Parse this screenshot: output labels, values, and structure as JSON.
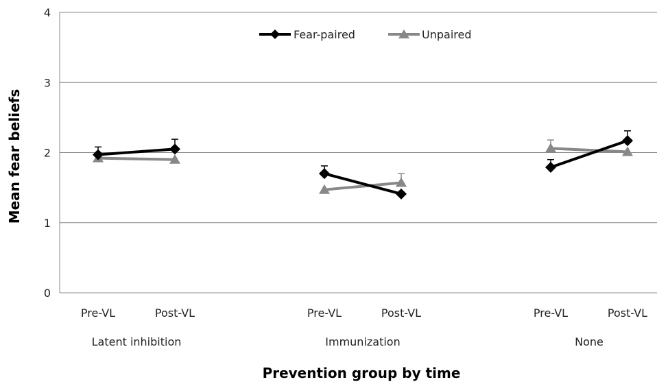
{
  "chart_data": {
    "type": "line",
    "xlabel": "Prevention group by time",
    "ylabel": "Mean fear beliefs",
    "ylim": [
      0,
      4
    ],
    "yticks": [
      "0",
      "1",
      "2",
      "3",
      "4"
    ],
    "grid": true,
    "legend": "top-center",
    "groups": [
      {
        "name": "Latent inhibition",
        "times": [
          "Pre-VL",
          "Post-VL"
        ]
      },
      {
        "name": "Immunization",
        "times": [
          "Pre-VL",
          "Post-VL"
        ]
      },
      {
        "name": "None",
        "times": [
          "Pre-VL",
          "Post-VL"
        ]
      }
    ],
    "series": [
      {
        "name": "Fear-paired",
        "color": "#000000",
        "marker": "diamond",
        "values": [
          [
            1.97,
            2.05
          ],
          [
            1.7,
            1.41
          ],
          [
            1.79,
            2.17
          ]
        ],
        "errors": [
          [
            0.11,
            0.14
          ],
          [
            0.11,
            0.0
          ],
          [
            0.11,
            0.14
          ]
        ]
      },
      {
        "name": "Unpaired",
        "color": "#888888",
        "marker": "triangle",
        "values": [
          [
            1.92,
            1.9
          ],
          [
            1.47,
            1.57
          ],
          [
            2.06,
            2.01
          ]
        ],
        "errors": [
          [
            0.0,
            0.0
          ],
          [
            0.0,
            0.13
          ],
          [
            0.12,
            0.0
          ]
        ]
      }
    ]
  }
}
